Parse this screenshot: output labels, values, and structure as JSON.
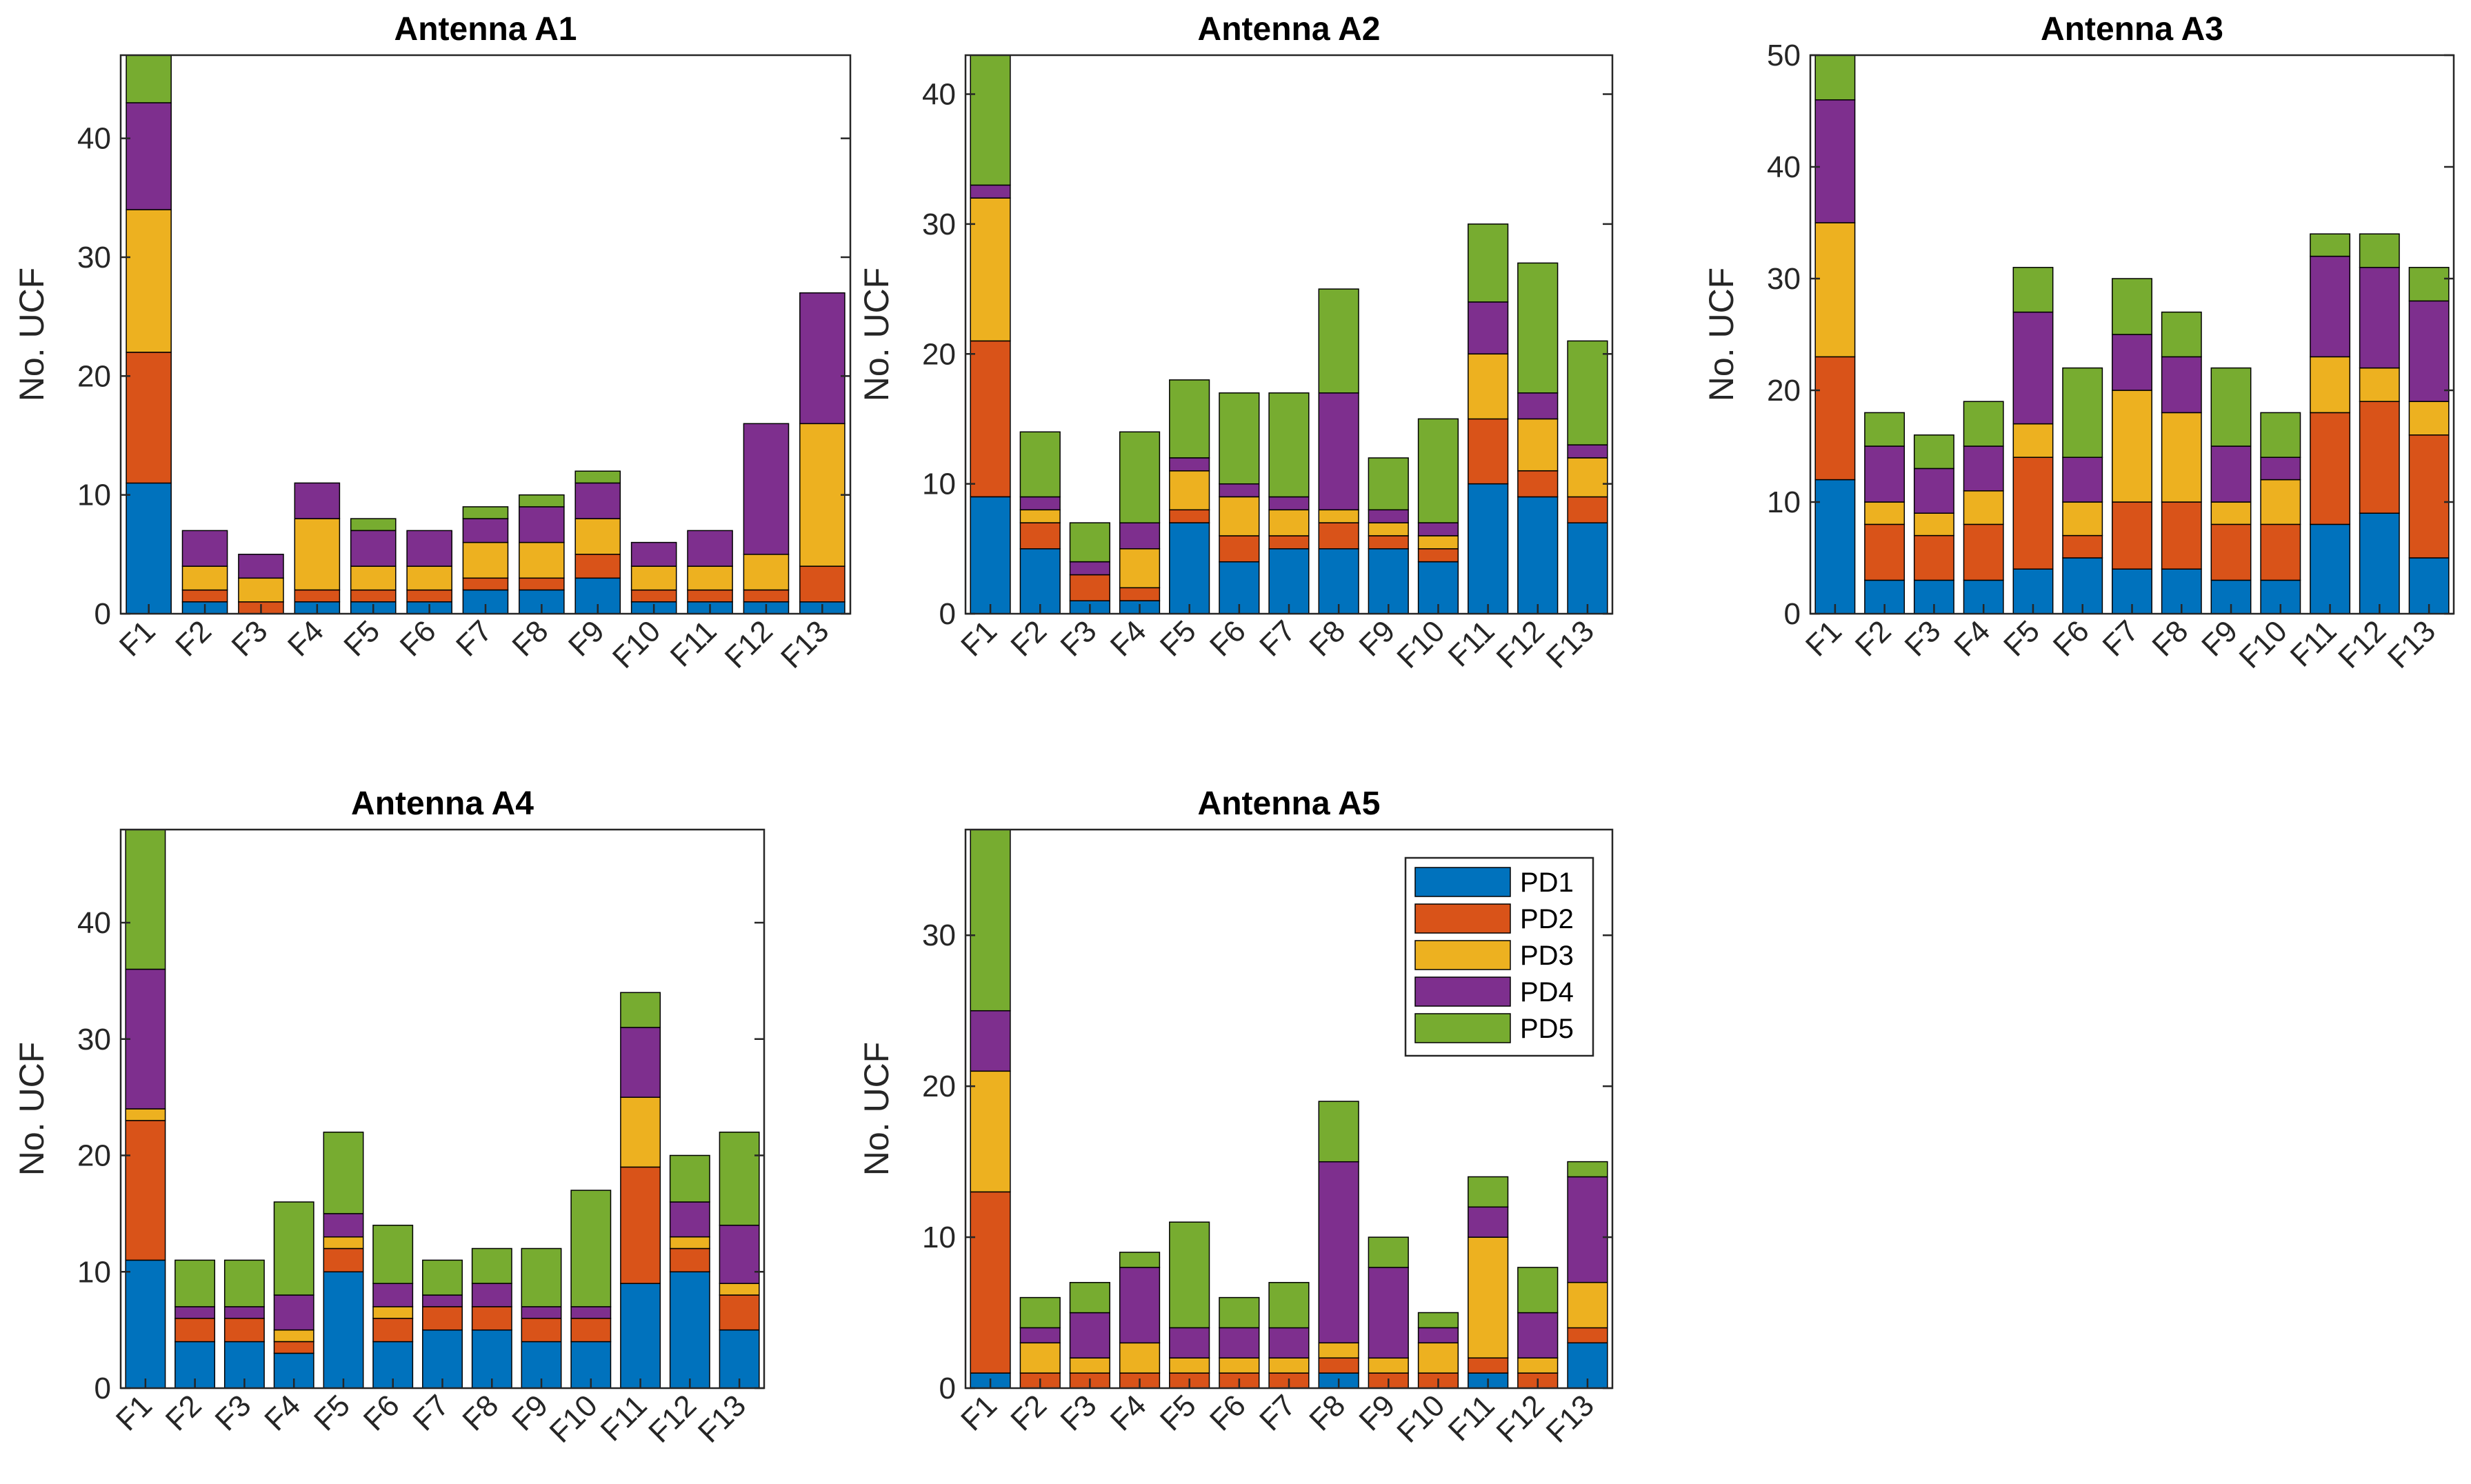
{
  "chart_data": [
    {
      "type": "bar",
      "stacked": true,
      "title": "Antenna A1",
      "ylabel": "No. UCF",
      "xlabel": "",
      "categories": [
        "F1",
        "F2",
        "F3",
        "F4",
        "F5",
        "F6",
        "F7",
        "F8",
        "F9",
        "F10",
        "F11",
        "F12",
        "F13"
      ],
      "ylim": [
        0,
        47
      ],
      "yticks": [
        0,
        10,
        20,
        30,
        40
      ],
      "series": [
        {
          "name": "PD1",
          "values": [
            11,
            1,
            0,
            1,
            1,
            1,
            2,
            2,
            3,
            1,
            1,
            1,
            1
          ]
        },
        {
          "name": "PD2",
          "values": [
            11,
            1,
            1,
            1,
            1,
            1,
            1,
            1,
            2,
            1,
            1,
            1,
            3
          ]
        },
        {
          "name": "PD3",
          "values": [
            12,
            2,
            2,
            6,
            2,
            2,
            3,
            3,
            3,
            2,
            2,
            3,
            12
          ]
        },
        {
          "name": "PD4",
          "values": [
            9,
            3,
            2,
            3,
            3,
            3,
            2,
            3,
            3,
            2,
            3,
            11,
            11
          ]
        },
        {
          "name": "PD5",
          "values": [
            5,
            0,
            0,
            0,
            1,
            0,
            1,
            1,
            1,
            0,
            0,
            0,
            0
          ]
        }
      ]
    },
    {
      "type": "bar",
      "stacked": true,
      "title": "Antenna A2",
      "ylabel": "No. UCF",
      "xlabel": "",
      "categories": [
        "F1",
        "F2",
        "F3",
        "F4",
        "F5",
        "F6",
        "F7",
        "F8",
        "F9",
        "F10",
        "F11",
        "F12",
        "F13"
      ],
      "ylim": [
        0,
        43
      ],
      "yticks": [
        0,
        10,
        20,
        30,
        40
      ],
      "series": [
        {
          "name": "PD1",
          "values": [
            9,
            5,
            1,
            1,
            7,
            4,
            5,
            5,
            5,
            4,
            10,
            9,
            7
          ]
        },
        {
          "name": "PD2",
          "values": [
            12,
            2,
            2,
            1,
            1,
            2,
            1,
            2,
            1,
            1,
            5,
            2,
            2
          ]
        },
        {
          "name": "PD3",
          "values": [
            11,
            1,
            0,
            3,
            3,
            3,
            2,
            1,
            1,
            1,
            5,
            4,
            3
          ]
        },
        {
          "name": "PD4",
          "values": [
            1,
            1,
            1,
            2,
            1,
            1,
            1,
            9,
            1,
            1,
            4,
            2,
            1
          ]
        },
        {
          "name": "PD5",
          "values": [
            10,
            5,
            3,
            7,
            6,
            7,
            8,
            8,
            4,
            8,
            6,
            10,
            8
          ]
        }
      ]
    },
    {
      "type": "bar",
      "stacked": true,
      "title": "Antenna A3",
      "ylabel": "No. UCF",
      "xlabel": "",
      "categories": [
        "F1",
        "F2",
        "F3",
        "F4",
        "F5",
        "F6",
        "F7",
        "F8",
        "F9",
        "F10",
        "F11",
        "F12",
        "F13"
      ],
      "ylim": [
        0,
        50
      ],
      "yticks": [
        0,
        10,
        20,
        30,
        40,
        50
      ],
      "series": [
        {
          "name": "PD1",
          "values": [
            12,
            3,
            3,
            3,
            4,
            5,
            4,
            4,
            3,
            3,
            8,
            9,
            5
          ]
        },
        {
          "name": "PD2",
          "values": [
            11,
            5,
            4,
            5,
            10,
            2,
            6,
            6,
            5,
            5,
            10,
            10,
            11
          ]
        },
        {
          "name": "PD3",
          "values": [
            12,
            2,
            2,
            3,
            3,
            3,
            10,
            8,
            2,
            4,
            5,
            3,
            3
          ]
        },
        {
          "name": "PD4",
          "values": [
            11,
            5,
            4,
            4,
            10,
            4,
            5,
            5,
            5,
            2,
            9,
            9,
            9
          ]
        },
        {
          "name": "PD5",
          "values": [
            4,
            3,
            3,
            4,
            4,
            8,
            5,
            4,
            7,
            4,
            2,
            3,
            3
          ]
        }
      ]
    },
    {
      "type": "bar",
      "stacked": true,
      "title": "Antenna A4",
      "ylabel": "No. UCF",
      "xlabel": "",
      "categories": [
        "F1",
        "F2",
        "F3",
        "F4",
        "F5",
        "F6",
        "F7",
        "F8",
        "F9",
        "F10",
        "F11",
        "F12",
        "F13"
      ],
      "ylim": [
        0,
        48
      ],
      "yticks": [
        0,
        10,
        20,
        30,
        40
      ],
      "series": [
        {
          "name": "PD1",
          "values": [
            11,
            4,
            4,
            3,
            10,
            4,
            5,
            5,
            4,
            4,
            9,
            10,
            5
          ]
        },
        {
          "name": "PD2",
          "values": [
            12,
            2,
            2,
            1,
            2,
            2,
            2,
            2,
            2,
            2,
            10,
            2,
            3
          ]
        },
        {
          "name": "PD3",
          "values": [
            1,
            0,
            0,
            1,
            1,
            1,
            0,
            0,
            0,
            0,
            6,
            1,
            1
          ]
        },
        {
          "name": "PD4",
          "values": [
            12,
            1,
            1,
            3,
            2,
            2,
            1,
            2,
            1,
            1,
            6,
            3,
            5
          ]
        },
        {
          "name": "PD5",
          "values": [
            12,
            4,
            4,
            8,
            7,
            5,
            3,
            3,
            5,
            10,
            3,
            4,
            8
          ]
        }
      ]
    },
    {
      "type": "bar",
      "stacked": true,
      "title": "Antenna A5",
      "ylabel": "No. UCF",
      "xlabel": "",
      "categories": [
        "F1",
        "F2",
        "F3",
        "F4",
        "F5",
        "F6",
        "F7",
        "F8",
        "F9",
        "F10",
        "F11",
        "F12",
        "F13"
      ],
      "ylim": [
        0,
        37
      ],
      "yticks": [
        0,
        10,
        20,
        30
      ],
      "legend": {
        "location": "top-right",
        "entries": [
          "PD1",
          "PD2",
          "PD3",
          "PD4",
          "PD5"
        ]
      },
      "series": [
        {
          "name": "PD1",
          "values": [
            1,
            0,
            0,
            0,
            0,
            0,
            0,
            1,
            0,
            0,
            1,
            0,
            3
          ]
        },
        {
          "name": "PD2",
          "values": [
            12,
            1,
            1,
            1,
            1,
            1,
            1,
            1,
            1,
            1,
            1,
            1,
            1
          ]
        },
        {
          "name": "PD3",
          "values": [
            8,
            2,
            1,
            2,
            1,
            1,
            1,
            1,
            1,
            2,
            8,
            1,
            3
          ]
        },
        {
          "name": "PD4",
          "values": [
            4,
            1,
            3,
            5,
            2,
            2,
            2,
            12,
            6,
            1,
            2,
            3,
            7
          ]
        },
        {
          "name": "PD5",
          "values": [
            12,
            2,
            2,
            1,
            7,
            2,
            3,
            4,
            2,
            1,
            2,
            3,
            1
          ]
        }
      ]
    }
  ],
  "colors": {
    "PD1": "#0072BD",
    "PD2": "#D95319",
    "PD3": "#EDB120",
    "PD4": "#7E2F8E",
    "PD5": "#77AC30"
  }
}
